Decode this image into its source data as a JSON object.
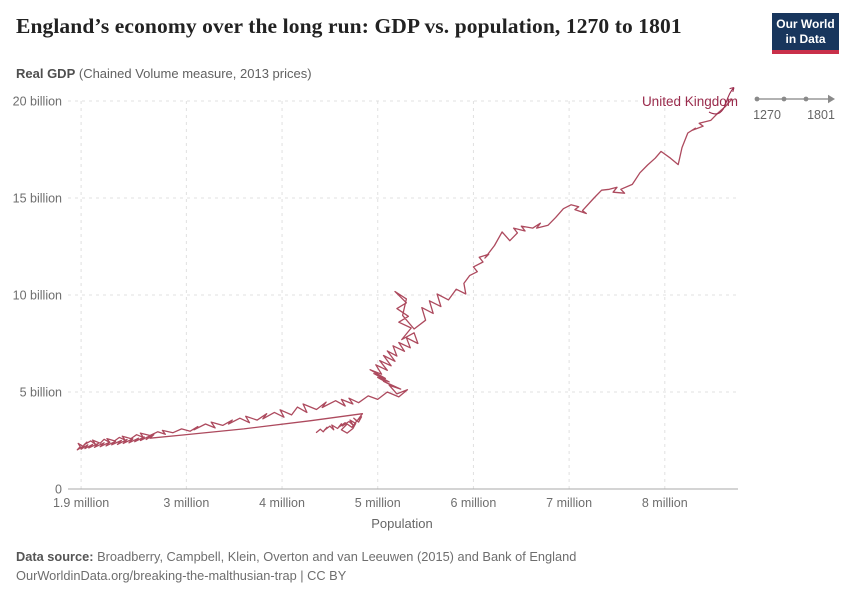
{
  "header": {
    "title": "England’s economy over the long run: GDP vs. population, 1270 to 1801",
    "logo": {
      "line1": "Our World",
      "line2": "in Data"
    }
  },
  "subtitle": {
    "bold": "Real GDP",
    "rest": " (Chained Volume measure, 2013 prices)"
  },
  "timeline": {
    "start": "1270",
    "end": "1801"
  },
  "theme": {
    "logo_bg": "#18365d",
    "logo_stripe": "#c9304a",
    "grid_color": "#e0e0e0",
    "axis_color": "#a8a8a8",
    "tick_color": "#6e6e6e"
  },
  "chart_data": {
    "type": "line",
    "title": "England’s economy over the long run: GDP vs. population, 1270 to 1801",
    "xlabel": "Population",
    "ylabel": "Real GDP (Chained Volume measure, 2013 prices)",
    "x_unit": "million people",
    "y_unit": "billion £, 2013 prices",
    "xlim": [
      1.763,
      8.765
    ],
    "ylim": [
      0,
      20
    ],
    "grid": true,
    "legend_position": "line-end-label",
    "x_ticks": [
      {
        "v": 1.9,
        "label": "1.9 million"
      },
      {
        "v": 3,
        "label": "3 million"
      },
      {
        "v": 4,
        "label": "4 million"
      },
      {
        "v": 5,
        "label": "5 million"
      },
      {
        "v": 6,
        "label": "6 million"
      },
      {
        "v": 7,
        "label": "7 million"
      },
      {
        "v": 8,
        "label": "8 million"
      }
    ],
    "y_ticks": [
      {
        "v": 0,
        "label": "0"
      },
      {
        "v": 5,
        "label": "5 billion"
      },
      {
        "v": 10,
        "label": "10 billion"
      },
      {
        "v": 15,
        "label": "15 billion"
      },
      {
        "v": 20,
        "label": "20 billion"
      }
    ],
    "series": [
      {
        "name": "United Kingdom",
        "color": "#ad4a5e",
        "label_color": "#9a2b4c",
        "year_start": 1270,
        "year_end": 1801,
        "points": [
          [
            4.36,
            2.92
          ],
          [
            4.4,
            3.08
          ],
          [
            4.43,
            2.95
          ],
          [
            4.47,
            3.18
          ],
          [
            4.44,
            3.02
          ],
          [
            4.5,
            3.24
          ],
          [
            4.54,
            3.05
          ],
          [
            4.52,
            3.3
          ],
          [
            4.58,
            3.12
          ],
          [
            4.62,
            3.36
          ],
          [
            4.59,
            3.18
          ],
          [
            4.66,
            3.42
          ],
          [
            4.63,
            3.25
          ],
          [
            4.7,
            3.48
          ],
          [
            4.74,
            3.3
          ],
          [
            4.71,
            3.55
          ],
          [
            4.77,
            3.38
          ],
          [
            4.74,
            3.12
          ],
          [
            4.68,
            2.88
          ],
          [
            4.62,
            3.05
          ],
          [
            4.68,
            3.35
          ],
          [
            4.73,
            3.18
          ],
          [
            4.78,
            3.5
          ],
          [
            4.75,
            3.65
          ],
          [
            4.8,
            3.45
          ],
          [
            4.83,
            3.72
          ],
          [
            4.79,
            3.55
          ],
          [
            4.84,
            3.88
          ],
          [
            4.3,
            3.52
          ],
          [
            3.6,
            3.1
          ],
          [
            2.95,
            2.78
          ],
          [
            2.62,
            2.62
          ],
          [
            2.66,
            2.8
          ],
          [
            2.58,
            2.55
          ],
          [
            2.62,
            2.74
          ],
          [
            2.52,
            2.5
          ],
          [
            2.56,
            2.68
          ],
          [
            2.46,
            2.44
          ],
          [
            2.5,
            2.62
          ],
          [
            2.4,
            2.38
          ],
          [
            2.44,
            2.58
          ],
          [
            2.34,
            2.35
          ],
          [
            2.38,
            2.55
          ],
          [
            2.28,
            2.3
          ],
          [
            2.32,
            2.5
          ],
          [
            2.22,
            2.28
          ],
          [
            2.26,
            2.46
          ],
          [
            2.16,
            2.22
          ],
          [
            2.2,
            2.42
          ],
          [
            2.1,
            2.18
          ],
          [
            2.14,
            2.38
          ],
          [
            2.04,
            2.15
          ],
          [
            2.08,
            2.35
          ],
          [
            1.98,
            2.12
          ],
          [
            2.02,
            2.3
          ],
          [
            1.94,
            2.08
          ],
          [
            1.97,
            2.28
          ],
          [
            1.9,
            2.05
          ],
          [
            1.93,
            2.22
          ],
          [
            1.86,
            2.02
          ],
          [
            1.89,
            2.18
          ],
          [
            1.87,
            2.35
          ],
          [
            1.92,
            2.2
          ],
          [
            1.96,
            2.42
          ],
          [
            1.93,
            2.28
          ],
          [
            2.0,
            2.48
          ],
          [
            2.05,
            2.3
          ],
          [
            2.02,
            2.52
          ],
          [
            2.1,
            2.36
          ],
          [
            2.14,
            2.56
          ],
          [
            2.2,
            2.4
          ],
          [
            2.17,
            2.6
          ],
          [
            2.25,
            2.48
          ],
          [
            2.3,
            2.66
          ],
          [
            2.36,
            2.52
          ],
          [
            2.33,
            2.72
          ],
          [
            2.42,
            2.6
          ],
          [
            2.48,
            2.8
          ],
          [
            2.55,
            2.66
          ],
          [
            2.52,
            2.88
          ],
          [
            2.62,
            2.76
          ],
          [
            2.7,
            2.95
          ],
          [
            2.78,
            2.82
          ],
          [
            2.75,
            3.02
          ],
          [
            2.86,
            2.9
          ],
          [
            2.95,
            3.1
          ],
          [
            3.04,
            2.98
          ],
          [
            3.12,
            3.22
          ],
          [
            3.08,
            3.05
          ],
          [
            3.2,
            3.35
          ],
          [
            3.3,
            3.15
          ],
          [
            3.26,
            3.45
          ],
          [
            3.38,
            3.28
          ],
          [
            3.48,
            3.55
          ],
          [
            3.44,
            3.35
          ],
          [
            3.56,
            3.65
          ],
          [
            3.66,
            3.42
          ],
          [
            3.62,
            3.75
          ],
          [
            3.74,
            3.55
          ],
          [
            3.84,
            3.88
          ],
          [
            3.8,
            3.62
          ],
          [
            3.92,
            3.95
          ],
          [
            4.02,
            3.7
          ],
          [
            3.98,
            4.08
          ],
          [
            4.1,
            3.82
          ],
          [
            4.16,
            4.22
          ],
          [
            4.26,
            3.95
          ],
          [
            4.22,
            4.38
          ],
          [
            4.36,
            4.1
          ],
          [
            4.46,
            4.48
          ],
          [
            4.42,
            4.2
          ],
          [
            4.56,
            4.55
          ],
          [
            4.66,
            4.28
          ],
          [
            4.62,
            4.62
          ],
          [
            4.74,
            4.38
          ],
          [
            4.7,
            4.68
          ],
          [
            4.8,
            4.45
          ],
          [
            4.9,
            4.8
          ],
          [
            5.0,
            4.62
          ],
          [
            5.1,
            5.0
          ],
          [
            5.22,
            4.75
          ],
          [
            5.31,
            5.12
          ],
          [
            5.2,
            4.9
          ],
          [
            5.12,
            5.35
          ],
          [
            5.24,
            5.15
          ],
          [
            5.06,
            5.55
          ],
          [
            5.16,
            5.3
          ],
          [
            5.0,
            5.75
          ],
          [
            5.12,
            5.52
          ],
          [
            4.96,
            5.95
          ],
          [
            5.08,
            5.7
          ],
          [
            4.92,
            6.15
          ],
          [
            5.04,
            5.92
          ],
          [
            4.98,
            6.4
          ],
          [
            5.1,
            6.12
          ],
          [
            5.02,
            6.62
          ],
          [
            5.14,
            6.35
          ],
          [
            5.06,
            6.88
          ],
          [
            5.18,
            6.58
          ],
          [
            5.1,
            7.12
          ],
          [
            5.2,
            6.85
          ],
          [
            5.16,
            7.38
          ],
          [
            5.28,
            7.1
          ],
          [
            5.22,
            7.55
          ],
          [
            5.34,
            7.28
          ],
          [
            5.3,
            7.8
          ],
          [
            5.42,
            7.5
          ],
          [
            5.38,
            8.05
          ],
          [
            5.25,
            7.7
          ],
          [
            5.35,
            8.3
          ],
          [
            5.22,
            8.6
          ],
          [
            5.32,
            8.9
          ],
          [
            5.2,
            9.3
          ],
          [
            5.3,
            9.6
          ],
          [
            5.18,
            10.18
          ],
          [
            5.3,
            9.8
          ],
          [
            5.26,
            8.95
          ],
          [
            5.38,
            8.25
          ],
          [
            5.5,
            8.7
          ],
          [
            5.46,
            9.35
          ],
          [
            5.58,
            9.05
          ],
          [
            5.54,
            9.7
          ],
          [
            5.66,
            9.4
          ],
          [
            5.62,
            10.05
          ],
          [
            5.74,
            9.75
          ],
          [
            5.82,
            10.3
          ],
          [
            5.92,
            10.05
          ],
          [
            5.9,
            10.6
          ],
          [
            5.96,
            11.0
          ],
          [
            6.04,
            11.2
          ],
          [
            6.0,
            11.45
          ],
          [
            6.1,
            11.7
          ],
          [
            6.06,
            11.95
          ],
          [
            6.16,
            12.1
          ],
          [
            6.12,
            11.9
          ],
          [
            6.22,
            12.55
          ],
          [
            6.3,
            13.25
          ],
          [
            6.38,
            12.8
          ],
          [
            6.46,
            13.2
          ],
          [
            6.42,
            13.45
          ],
          [
            6.54,
            13.3
          ],
          [
            6.5,
            13.55
          ],
          [
            6.62,
            13.45
          ],
          [
            6.7,
            13.7
          ],
          [
            6.66,
            13.45
          ],
          [
            6.78,
            13.6
          ],
          [
            6.86,
            14.0
          ],
          [
            6.94,
            14.45
          ],
          [
            7.02,
            14.65
          ],
          [
            7.1,
            14.55
          ],
          [
            7.06,
            14.4
          ],
          [
            7.18,
            14.2
          ],
          [
            7.14,
            14.35
          ],
          [
            7.26,
            15.0
          ],
          [
            7.34,
            15.4
          ],
          [
            7.42,
            15.45
          ],
          [
            7.5,
            15.55
          ],
          [
            7.46,
            15.3
          ],
          [
            7.58,
            15.25
          ],
          [
            7.54,
            15.45
          ],
          [
            7.66,
            15.7
          ],
          [
            7.74,
            16.3
          ],
          [
            7.82,
            16.7
          ],
          [
            7.9,
            17.05
          ],
          [
            7.96,
            17.4
          ],
          [
            8.06,
            17.05
          ],
          [
            8.14,
            16.72
          ],
          [
            8.18,
            17.6
          ],
          [
            8.24,
            18.35
          ],
          [
            8.32,
            18.6
          ],
          [
            8.28,
            18.48
          ],
          [
            8.4,
            18.7
          ],
          [
            8.36,
            18.85
          ],
          [
            8.48,
            19.0
          ],
          [
            8.56,
            19.4
          ],
          [
            8.63,
            19.7
          ],
          [
            8.7,
            20.1
          ]
        ]
      }
    ]
  },
  "footer": {
    "source_bold": "Data source:",
    "source_text": " Broadberry, Campbell, Klein, Overton and van Leeuwen (2015) and Bank of England",
    "citation": "OurWorldinData.org/breaking-the-malthusian-trap | CC BY"
  }
}
